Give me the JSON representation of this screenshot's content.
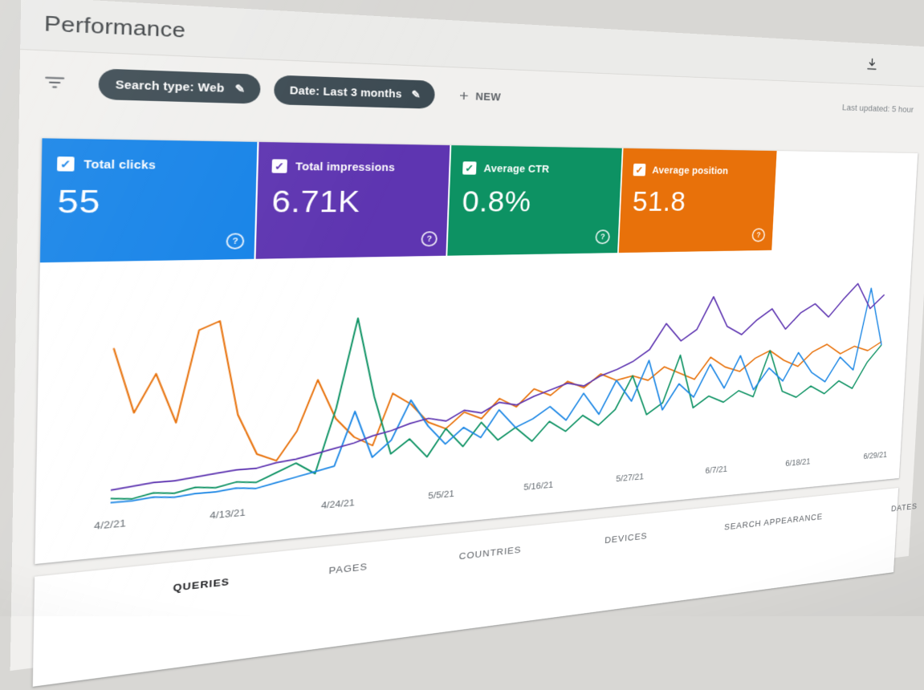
{
  "header": {
    "title": "Performance"
  },
  "toolbar": {
    "search_type_chip": "Search type: Web",
    "date_chip": "Date: Last 3 months",
    "new_label": "NEW",
    "last_updated": "Last updated: 5 hour"
  },
  "icons": {
    "check": "✓",
    "pencil": "✎",
    "plus": "+",
    "help": "?"
  },
  "theme": {
    "chip_bg": "#3c4a52"
  },
  "metrics": [
    {
      "label": "Total clicks",
      "value": "55",
      "color": "#1583e8"
    },
    {
      "label": "Total impressions",
      "value": "6.71K",
      "color": "#5e35b1"
    },
    {
      "label": "Average CTR",
      "value": "0.8%",
      "color": "#0d9263"
    },
    {
      "label": "Average position",
      "value": "51.8",
      "color": "#e8710a"
    }
  ],
  "chart_data": {
    "type": "line",
    "title": "",
    "x_tick_labels": [
      "4/2/21",
      "4/13/21",
      "4/24/21",
      "5/5/21",
      "5/16/21",
      "5/27/21",
      "6/7/21",
      "6/18/21",
      "6/29/21"
    ],
    "ylim": [
      0,
      100
    ],
    "y_axis": "hidden — each series plotted on its own relative scale, values normalized 0-100",
    "grid": false,
    "legend": "none (series keyed by metric card colors)",
    "series": [
      {
        "name": "Average position",
        "color": "#e8710a",
        "values": [
          75,
          44,
          62,
          38,
          82,
          86,
          40,
          20,
          16,
          30,
          55,
          35,
          25,
          20,
          46,
          40,
          30,
          26,
          34,
          30,
          40,
          35,
          44,
          40,
          47,
          43,
          50,
          46,
          48,
          45,
          52,
          48,
          44,
          56,
          50,
          47,
          54,
          58,
          52,
          48,
          56,
          60,
          54,
          58,
          55,
          60
        ]
      },
      {
        "name": "Average CTR",
        "color": "#0d9263",
        "values": [
          4,
          3,
          5,
          4,
          6,
          5,
          7,
          6,
          10,
          14,
          8,
          40,
          85,
          45,
          15,
          22,
          12,
          26,
          16,
          28,
          18,
          24,
          16,
          26,
          20,
          28,
          22,
          30,
          48,
          26,
          32,
          58,
          28,
          34,
          30,
          36,
          32,
          58,
          34,
          30,
          36,
          31,
          38,
          33,
          48,
          58
        ]
      },
      {
        "name": "Total clicks",
        "color": "#1e88e5",
        "values": [
          2,
          2,
          3,
          2,
          3,
          3,
          4,
          3,
          5,
          7,
          9,
          11,
          38,
          14,
          22,
          42,
          28,
          18,
          26,
          20,
          34,
          24,
          28,
          34,
          26,
          40,
          28,
          46,
          34,
          56,
          28,
          42,
          34,
          52,
          38,
          56,
          36,
          48,
          40,
          56,
          44,
          38,
          52,
          44,
          92,
          58
        ]
      },
      {
        "name": "Total impressions",
        "color": "#5e35b1",
        "values": [
          8,
          9,
          10,
          10,
          11,
          12,
          13,
          13,
          15,
          16,
          18,
          20,
          22,
          25,
          27,
          30,
          32,
          30,
          35,
          33,
          38,
          36,
          40,
          43,
          46,
          44,
          49,
          52,
          56,
          62,
          76,
          66,
          72,
          90,
          73,
          68,
          76,
          82,
          70,
          79,
          84,
          76,
          86,
          95,
          80,
          88
        ]
      }
    ]
  },
  "tabs": [
    {
      "label": "QUERIES",
      "active": true
    },
    {
      "label": "PAGES",
      "active": false
    },
    {
      "label": "COUNTRIES",
      "active": false
    },
    {
      "label": "DEVICES",
      "active": false
    },
    {
      "label": "SEARCH APPEARANCE",
      "active": false
    },
    {
      "label": "DATES",
      "active": false
    }
  ]
}
